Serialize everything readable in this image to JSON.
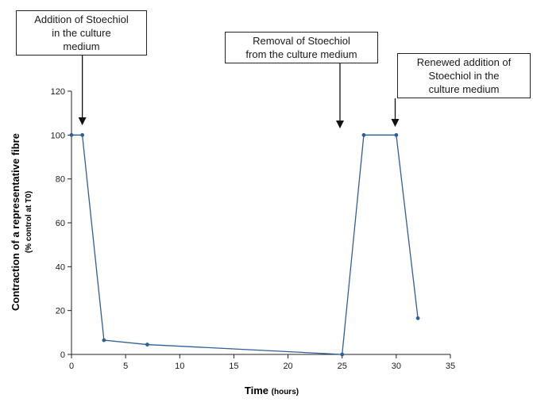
{
  "chart_data": {
    "type": "line",
    "xlabel_main": "Time",
    "xlabel_unit": "(hours)",
    "ylabel_main": "Contraction of a representative fibre",
    "ylabel_sub": "(% control at T0)",
    "xlim": [
      0,
      35
    ],
    "ylim": [
      0,
      120
    ],
    "x_ticks": [
      "0",
      "5",
      "10",
      "15",
      "20",
      "25",
      "30",
      "35"
    ],
    "y_ticks": [
      "0",
      "20",
      "40",
      "60",
      "80",
      "100",
      "120"
    ],
    "series": [
      {
        "x": [
          0,
          1,
          3,
          7,
          25,
          27,
          30,
          32
        ],
        "y": [
          100,
          100,
          6.5,
          4.5,
          0,
          100,
          100,
          16.5
        ]
      }
    ],
    "line_color": "#2e5f97",
    "grid": false,
    "annotations": [
      {
        "lines": [
          "Addition of Stoechiol",
          "in the culture",
          "medium"
        ],
        "arrow_x": 1
      },
      {
        "lines": [
          "Removal of Stoechiol",
          "from the culture medium"
        ],
        "arrow_x": 24.8
      },
      {
        "lines": [
          "Renewed addition of",
          "Stoechiol in the",
          "culture medium"
        ],
        "arrow_x": 29.9
      }
    ]
  }
}
